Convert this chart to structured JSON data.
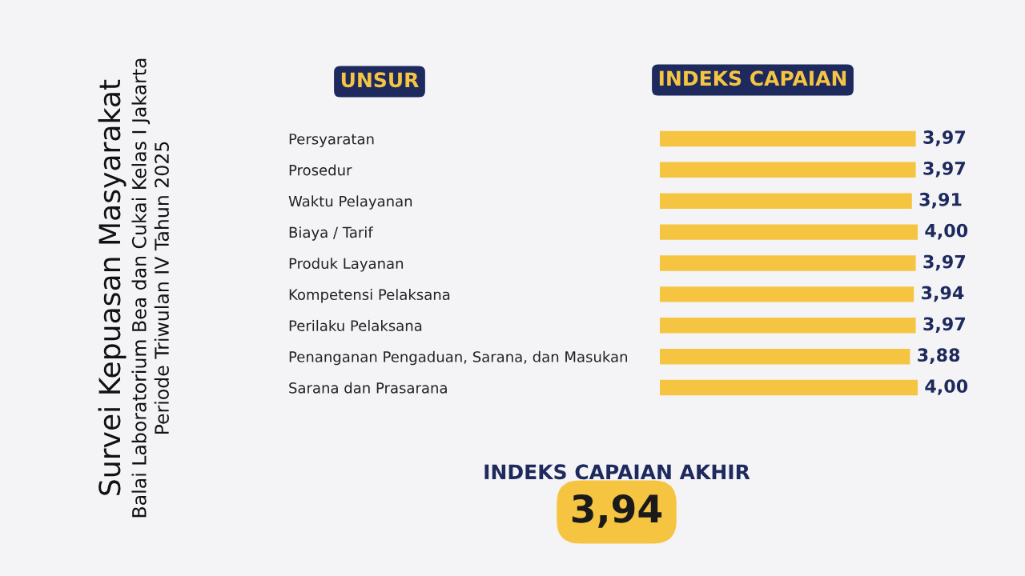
{
  "chart_data": {
    "type": "bar",
    "orientation": "horizontal",
    "title": "Survei Kepuasan Masyarakat",
    "subtitle": "Balai Laboratorium Bea dan Cukai Kelas I Jakarta\nPeriode Triwulan IV Tahun 2025",
    "categories": [
      "Persyaratan",
      "Prosedur",
      "Waktu Pelayanan",
      "Biaya / Tarif",
      "Produk Layanan",
      "Kompetensi Pelaksana",
      "Perilaku Pelaksana",
      "Penanganan Pengaduan, Sarana, dan Masukan",
      "Sarana dan Prasarana"
    ],
    "values": [
      3.97,
      3.97,
      3.91,
      4.0,
      3.97,
      3.94,
      3.97,
      3.88,
      4.0
    ],
    "value_labels": [
      "3,97",
      "3,97",
      "3,91",
      "4,00",
      "3,97",
      "3,94",
      "3,97",
      "3,88",
      "4,00"
    ],
    "color": "#f5c542",
    "annotations": [
      "UNSUR",
      "INDEKS CAPAIAN",
      "INDEKS CAPAIAN AKHIR",
      "3,94"
    ]
  }
}
